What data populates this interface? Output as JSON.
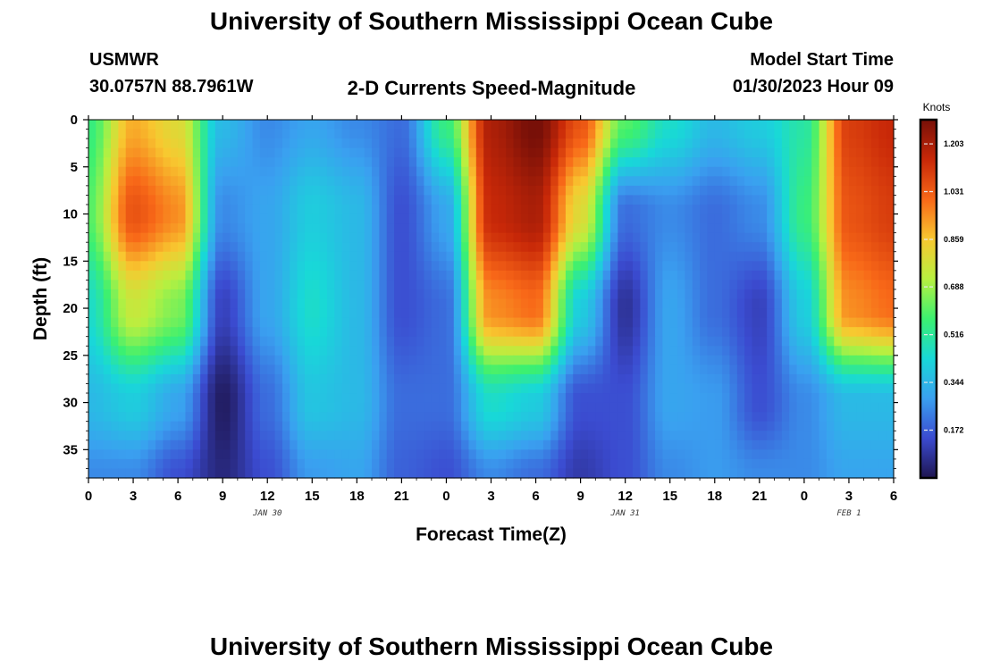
{
  "page": {
    "title": "University of Southern Mississippi Ocean Cube",
    "footer_title": "University of Southern Mississippi Ocean Cube",
    "station": "USMWR",
    "coords": "30.0757N  88.7961W",
    "subtitle": "2-D Currents Speed-Magnitude",
    "start_label": "Model Start Time",
    "start_value": "01/30/2023 Hour 09"
  },
  "chart_data": {
    "type": "heatmap",
    "title": "2-D Currents Speed-Magnitude",
    "xlabel": "Forecast Time(Z)",
    "ylabel": "Depth (ft)",
    "x_ticks": [
      "0",
      "3",
      "6",
      "9",
      "12",
      "15",
      "18",
      "21",
      "0",
      "3",
      "6",
      "9",
      "12",
      "15",
      "18",
      "21",
      "0",
      "3",
      "6"
    ],
    "x_range_hours": [
      0,
      54
    ],
    "y_ticks": [
      "0",
      "5",
      "10",
      "15",
      "20",
      "25",
      "30",
      "35"
    ],
    "y_range": [
      0,
      38
    ],
    "y_inverted": true,
    "date_labels": [
      {
        "text": "JAN 30",
        "hour": 12
      },
      {
        "text": "JAN 31",
        "hour": 36
      },
      {
        "text": "FEB 1",
        "hour": 51
      }
    ],
    "colorbar": {
      "unit": "Knots",
      "min": 0,
      "max": 1.29,
      "ticks": [
        "0.172",
        "0.344",
        "0.516",
        "0.688",
        "0.859",
        "1.031",
        "1.203"
      ],
      "tick_values": [
        0.172,
        0.344,
        0.516,
        0.688,
        0.859,
        1.031,
        1.203
      ],
      "colors": [
        "#1e1550",
        "#3b4bd0",
        "#3aa0f0",
        "#18d8d8",
        "#3cf070",
        "#b8f040",
        "#f8c830",
        "#f86818",
        "#c82808",
        "#781008"
      ]
    },
    "field": {
      "x_hours": [
        0,
        3,
        6,
        9,
        12,
        15,
        18,
        21,
        24,
        27,
        30,
        33,
        36,
        39,
        42,
        45,
        48,
        51,
        54
      ],
      "depths": [
        0,
        10,
        20,
        30,
        38
      ],
      "speed": [
        [
          0.55,
          0.9,
          0.8,
          0.35,
          0.25,
          0.3,
          0.25,
          0.2,
          0.55,
          1.2,
          1.3,
          1.05,
          0.6,
          0.45,
          0.35,
          0.4,
          0.5,
          1.1,
          1.15
        ],
        [
          0.6,
          1.05,
          0.95,
          0.25,
          0.3,
          0.4,
          0.35,
          0.15,
          0.3,
          1.15,
          1.2,
          0.8,
          0.2,
          0.25,
          0.2,
          0.25,
          0.55,
          1.05,
          1.1
        ],
        [
          0.45,
          0.75,
          0.65,
          0.12,
          0.3,
          0.45,
          0.35,
          0.15,
          0.2,
          0.95,
          1.0,
          0.4,
          0.08,
          0.3,
          0.2,
          0.12,
          0.4,
          0.95,
          1.0
        ],
        [
          0.35,
          0.4,
          0.3,
          0.02,
          0.2,
          0.38,
          0.35,
          0.2,
          0.2,
          0.45,
          0.4,
          0.15,
          0.15,
          0.3,
          0.28,
          0.15,
          0.25,
          0.35,
          0.35
        ],
        [
          0.25,
          0.25,
          0.15,
          0.05,
          0.15,
          0.28,
          0.3,
          0.18,
          0.15,
          0.25,
          0.2,
          0.1,
          0.15,
          0.25,
          0.28,
          0.25,
          0.25,
          0.3,
          0.3
        ]
      ]
    }
  }
}
